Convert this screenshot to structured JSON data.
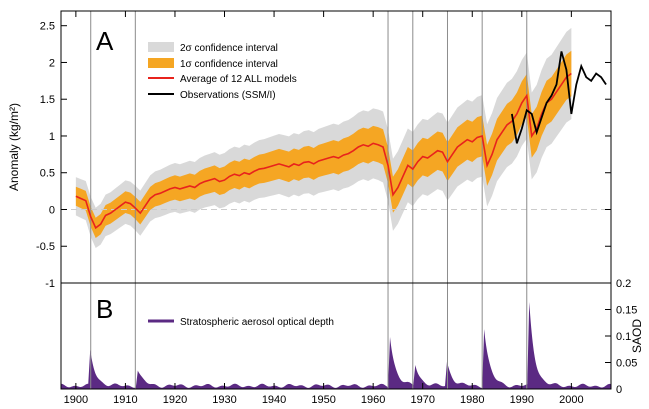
{
  "chart_data": [
    {
      "panel": "A",
      "type": "line",
      "ylabel": "Anomaly (kg/m²)",
      "xlim": [
        1897,
        2008
      ],
      "ylim": [
        -1,
        2.7
      ],
      "y_ticks": [
        -1,
        -0.5,
        0,
        0.5,
        1,
        1.5,
        2,
        2.5
      ],
      "y_tick_labels": [
        "-1",
        "-0.5",
        "0",
        "0.5",
        "1",
        "1.5",
        "2",
        "2.5"
      ],
      "zero_line": "dashed",
      "legend_position": "top-center",
      "legend": [
        "2σ confidence interval",
        "1σ confidence interval",
        "Average of 12 ALL models",
        "Observations (SSM/I)"
      ],
      "colors": {
        "ci2": "#d9d9d9",
        "ci1": "#f5a623",
        "model": "#e8231c",
        "obs": "#000000",
        "event_lines": "#8c8c8c",
        "zero_line": "#cccccc"
      },
      "model_mean": {
        "x": [
          1900,
          1901,
          1902,
          1903,
          1904,
          1905,
          1906,
          1907,
          1908,
          1909,
          1910,
          1911,
          1912,
          1913,
          1914,
          1915,
          1916,
          1917,
          1918,
          1919,
          1920,
          1921,
          1922,
          1923,
          1924,
          1925,
          1926,
          1927,
          1928,
          1929,
          1930,
          1931,
          1932,
          1933,
          1934,
          1935,
          1936,
          1937,
          1938,
          1939,
          1940,
          1941,
          1942,
          1943,
          1944,
          1945,
          1946,
          1947,
          1948,
          1949,
          1950,
          1951,
          1952,
          1953,
          1954,
          1955,
          1956,
          1957,
          1958,
          1959,
          1960,
          1961,
          1962,
          1963,
          1964,
          1965,
          1966,
          1967,
          1968,
          1969,
          1970,
          1971,
          1972,
          1973,
          1974,
          1975,
          1976,
          1977,
          1978,
          1979,
          1980,
          1981,
          1982,
          1983,
          1984,
          1985,
          1986,
          1987,
          1988,
          1989,
          1990,
          1991,
          1992,
          1993,
          1994,
          1995,
          1996,
          1997,
          1998,
          1999,
          2000
        ],
        "y": [
          0.18,
          0.15,
          0.12,
          -0.1,
          -0.25,
          -0.2,
          -0.08,
          -0.05,
          0.0,
          0.05,
          0.1,
          0.08,
          0.02,
          -0.05,
          0.05,
          0.15,
          0.2,
          0.22,
          0.25,
          0.28,
          0.3,
          0.28,
          0.3,
          0.32,
          0.3,
          0.35,
          0.38,
          0.4,
          0.42,
          0.38,
          0.4,
          0.45,
          0.48,
          0.46,
          0.5,
          0.48,
          0.52,
          0.55,
          0.56,
          0.58,
          0.6,
          0.62,
          0.6,
          0.58,
          0.62,
          0.6,
          0.64,
          0.65,
          0.62,
          0.66,
          0.68,
          0.7,
          0.72,
          0.7,
          0.74,
          0.76,
          0.8,
          0.85,
          0.88,
          0.86,
          0.9,
          0.88,
          0.85,
          0.6,
          0.2,
          0.3,
          0.45,
          0.6,
          0.55,
          0.65,
          0.72,
          0.7,
          0.75,
          0.8,
          0.78,
          0.65,
          0.75,
          0.85,
          0.9,
          0.95,
          0.92,
          0.98,
          1.0,
          0.6,
          0.75,
          0.95,
          1.05,
          1.15,
          1.2,
          1.3,
          1.45,
          1.55,
          1.0,
          1.1,
          1.3,
          1.45,
          1.5,
          1.6,
          1.7,
          1.8,
          1.85
        ]
      },
      "observations": {
        "x": [
          1988,
          1989,
          1990,
          1991,
          1992,
          1993,
          1994,
          1995,
          1996,
          1997,
          1998,
          1999,
          2000,
          2001,
          2002,
          2003,
          2004,
          2005,
          2006,
          2007
        ],
        "y": [
          1.3,
          0.9,
          1.1,
          1.35,
          1.3,
          1.05,
          1.25,
          1.45,
          1.55,
          1.7,
          2.15,
          1.9,
          1.3,
          1.7,
          1.95,
          1.8,
          1.75,
          1.85,
          1.8,
          1.7
        ]
      },
      "event_years": [
        1903,
        1912,
        1963,
        1968,
        1975,
        1982,
        1991
      ]
    },
    {
      "panel": "B",
      "type": "area",
      "ylabel": "SAOD",
      "xlim": [
        1897,
        2008
      ],
      "ylim": [
        0,
        0.2
      ],
      "y_ticks": [
        0,
        0.05,
        0.1,
        0.15,
        0.2
      ],
      "y_tick_labels": [
        "0",
        "0.05",
        "0.1",
        "0.15",
        "0.2"
      ],
      "x_ticks": [
        1900,
        1910,
        1920,
        1930,
        1940,
        1950,
        1960,
        1970,
        1980,
        1990,
        2000
      ],
      "x_tick_labels": [
        "1900",
        "1910",
        "1920",
        "1930",
        "1940",
        "1950",
        "1960",
        "1970",
        "1980",
        "1990",
        "2000"
      ],
      "legend": [
        "Stratospheric aerosol optical depth"
      ],
      "legend_position": "top-left",
      "colors": {
        "area": "#5b2a83"
      },
      "eruptions": [
        {
          "year": 1902.9,
          "peak": 0.065
        },
        {
          "year": 1912.5,
          "peak": 0.03
        },
        {
          "year": 1963.4,
          "peak": 0.095
        },
        {
          "year": 1968.5,
          "peak": 0.04
        },
        {
          "year": 1974.9,
          "peak": 0.045
        },
        {
          "year": 1982.4,
          "peak": 0.11
        },
        {
          "year": 1991.5,
          "peak": 0.155
        }
      ],
      "background": 0.006
    }
  ],
  "panel_labels": [
    "A",
    "B"
  ]
}
